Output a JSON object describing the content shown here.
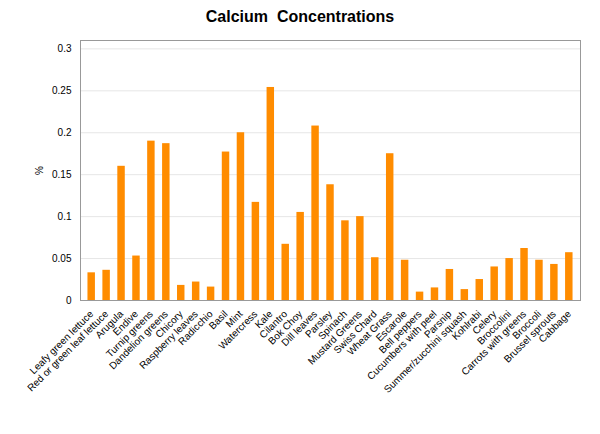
{
  "chart_data": {
    "type": "bar",
    "title": "Calcium  Concentrations",
    "ylabel": "%",
    "categories": [
      "Leafy green lettuce",
      "Red or green leaf lettuce",
      "Arugula",
      "Endive",
      "Turnip greens",
      "Dandelion greens",
      "Chicory",
      "Raspberry leaves",
      "Radicchio",
      "Basil",
      "Mint",
      "Watercress",
      "Kale",
      "Cilantro",
      "Bok Choy",
      "Dill leaves",
      "Parsley",
      "Spinach",
      "Mustard Greens",
      "Swiss Chard",
      "Wheat Grass",
      "Escarole",
      "Bell peppers",
      "Cucumbers with peel",
      "Parsnip",
      "Summer/zucchini squash",
      "Kohlrabi",
      "Celery",
      "Broccolini",
      "Carrots with greens",
      "Broccoli",
      "Brussel sprouts",
      "Cabbage"
    ],
    "values": [
      0.033,
      0.036,
      0.16,
      0.053,
      0.19,
      0.187,
      0.018,
      0.022,
      0.016,
      0.177,
      0.2,
      0.117,
      0.254,
      0.067,
      0.105,
      0.208,
      0.138,
      0.095,
      0.1,
      0.051,
      0.175,
      0.048,
      0.01,
      0.015,
      0.037,
      0.013,
      0.025,
      0.04,
      0.05,
      0.062,
      0.048,
      0.043,
      0.057
    ],
    "color": "#FF8C00",
    "ylim": [
      0,
      0.31
    ],
    "yticks": [
      0,
      0.05,
      0.1,
      0.15,
      0.2,
      0.25,
      0.3
    ],
    "grid": true
  }
}
